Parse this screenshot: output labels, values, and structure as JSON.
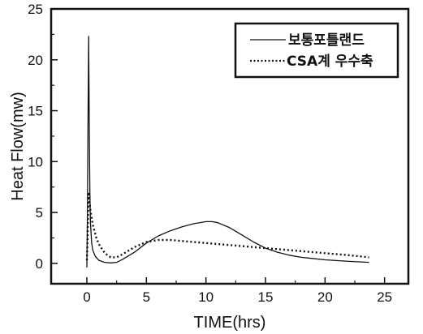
{
  "chart_data": {
    "type": "line",
    "title": "",
    "xlabel": "TIME(hrs)",
    "ylabel": "Heat Flow(mw)",
    "xlim": [
      -3,
      27
    ],
    "ylim": [
      -2,
      25
    ],
    "x_ticks": [
      0,
      5,
      10,
      15,
      20,
      25
    ],
    "y_ticks": [
      0,
      5,
      10,
      15,
      20,
      25
    ],
    "grid": false,
    "legend_position": "top-right",
    "series": [
      {
        "name": "보통포틀랜드",
        "style": "solid",
        "color": "#111111",
        "x": [
          0,
          0.05,
          0.1,
          0.15,
          0.2,
          0.25,
          0.3,
          0.4,
          0.5,
          0.7,
          1.0,
          1.5,
          2.0,
          2.5,
          3.0,
          4.0,
          5.0,
          6.0,
          7.0,
          8.0,
          9.0,
          10.0,
          10.5,
          11.0,
          12.0,
          13.0,
          14.0,
          15.0,
          16.0,
          17.0,
          18.0,
          20.0,
          22.0,
          23.7
        ],
        "y": [
          -0.4,
          5.0,
          15.0,
          22.3,
          14.0,
          7.0,
          4.0,
          2.0,
          1.3,
          0.7,
          0.3,
          0.1,
          0.05,
          0.1,
          0.4,
          1.1,
          2.0,
          2.7,
          3.2,
          3.6,
          3.9,
          4.1,
          4.1,
          4.0,
          3.5,
          2.8,
          2.1,
          1.5,
          1.1,
          0.8,
          0.6,
          0.35,
          0.2,
          0.1
        ]
      },
      {
        "name": "CSA계 우수축",
        "style": "dotted",
        "color": "#111111",
        "x": [
          0,
          0.05,
          0.1,
          0.15,
          0.2,
          0.3,
          0.5,
          0.8,
          1.0,
          1.5,
          2.0,
          2.5,
          3.0,
          4.0,
          5.0,
          6.0,
          7.0,
          8.0,
          10.0,
          12.0,
          14.0,
          16.0,
          18.0,
          20.0,
          22.0,
          23.7
        ],
        "y": [
          0.3,
          2.0,
          5.0,
          7.0,
          6.3,
          5.2,
          3.8,
          2.5,
          1.9,
          1.0,
          0.6,
          0.6,
          0.9,
          1.6,
          2.1,
          2.3,
          2.3,
          2.2,
          2.0,
          1.8,
          1.6,
          1.4,
          1.2,
          1.0,
          0.8,
          0.6
        ]
      }
    ]
  }
}
